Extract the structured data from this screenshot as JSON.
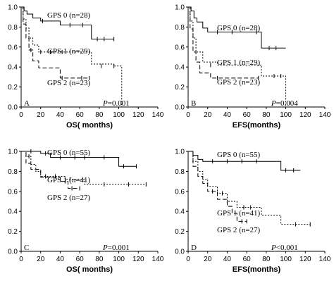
{
  "chart_data": [
    {
      "type": "line",
      "panel": "A",
      "xlabel": "OS( months)",
      "ylabel": "",
      "xlim": [
        0,
        140
      ],
      "ylim": [
        0,
        1.0
      ],
      "xticks": [
        0,
        20,
        40,
        60,
        80,
        100,
        120,
        140
      ],
      "yticks": [
        0.0,
        0.2,
        0.4,
        0.6,
        0.8,
        1.0
      ],
      "pvalue": "P=0.001",
      "series": [
        {
          "name": "GPS 0 (n=28)",
          "style": "solid",
          "x": [
            0,
            3,
            6,
            12,
            20,
            40,
            60,
            72,
            95
          ],
          "y": [
            1.0,
            0.96,
            0.93,
            0.89,
            0.86,
            0.82,
            0.82,
            0.68,
            0.68
          ],
          "censored": [
            [
              22,
              0.86
            ],
            [
              50,
              0.82
            ],
            [
              63,
              0.82
            ],
            [
              78,
              0.68
            ],
            [
              85,
              0.68
            ],
            [
              95,
              0.68
            ]
          ]
        },
        {
          "name": "GPS 1 (n=29)",
          "style": "dotted",
          "x": [
            0,
            2,
            5,
            8,
            12,
            18,
            40,
            72,
            95,
            103
          ],
          "y": [
            1.0,
            0.88,
            0.79,
            0.69,
            0.62,
            0.55,
            0.55,
            0.43,
            0.41,
            0.0
          ],
          "censored": [
            [
              20,
              0.55
            ],
            [
              30,
              0.55
            ],
            [
              42,
              0.55
            ],
            [
              82,
              0.41
            ],
            [
              95,
              0.41
            ]
          ]
        },
        {
          "name": "GPS 2 (n=23)",
          "style": "dashed",
          "x": [
            0,
            2,
            5,
            8,
            12,
            18,
            23,
            40,
            70
          ],
          "y": [
            1.0,
            0.83,
            0.69,
            0.57,
            0.46,
            0.39,
            0.39,
            0.29,
            0.29
          ],
          "censored": [
            [
              10,
              0.57
            ],
            [
              42,
              0.29
            ],
            [
              62,
              0.29
            ],
            [
              70,
              0.29
            ]
          ]
        }
      ]
    },
    {
      "type": "line",
      "panel": "B",
      "xlabel": "EFS(months)",
      "ylabel": "",
      "xlim": [
        0,
        140
      ],
      "ylim": [
        0,
        1.0
      ],
      "xticks": [
        0,
        20,
        40,
        60,
        80,
        100,
        120,
        140
      ],
      "yticks": [
        0.0,
        0.2,
        0.4,
        0.6,
        0.8,
        1.0
      ],
      "pvalue": "P=0.004",
      "series": [
        {
          "name": "GPS 0 (n=28)",
          "style": "solid",
          "x": [
            0,
            3,
            6,
            9,
            15,
            20,
            75,
            100
          ],
          "y": [
            1.0,
            0.96,
            0.89,
            0.85,
            0.79,
            0.75,
            0.59,
            0.59
          ],
          "censored": [
            [
              30,
              0.75
            ],
            [
              45,
              0.75
            ],
            [
              70,
              0.75
            ],
            [
              83,
              0.59
            ],
            [
              90,
              0.59
            ]
          ]
        },
        {
          "name": "GPS 1 (n=29)",
          "style": "dotted",
          "x": [
            0,
            2,
            5,
            8,
            15,
            30,
            75,
            80,
            100
          ],
          "y": [
            1.0,
            0.86,
            0.69,
            0.55,
            0.45,
            0.42,
            0.31,
            0.31,
            0.0
          ],
          "censored": [
            [
              23,
              0.42
            ],
            [
              88,
              0.31
            ],
            [
              95,
              0.31
            ]
          ]
        },
        {
          "name": "GPS 2 (n=23)",
          "style": "dashed",
          "x": [
            0,
            2,
            5,
            8,
            12,
            23,
            40,
            72
          ],
          "y": [
            1.0,
            0.78,
            0.55,
            0.45,
            0.34,
            0.29,
            0.29,
            0.29
          ],
          "censored": [
            [
              30,
              0.29
            ],
            [
              72,
              0.29
            ]
          ]
        }
      ]
    },
    {
      "type": "line",
      "panel": "C",
      "xlabel": "OS( months)",
      "ylabel": "",
      "xlim": [
        0,
        140
      ],
      "ylim": [
        0,
        1.0
      ],
      "xticks": [
        0,
        20,
        40,
        60,
        80,
        100,
        120,
        140
      ],
      "yticks": [
        0.0,
        0.2,
        0.4,
        0.6,
        0.8,
        1.0
      ],
      "pvalue": "P=0.001",
      "series": [
        {
          "name": "GPS 0 (n=55)",
          "style": "solid",
          "x": [
            0,
            20,
            30,
            75,
            100,
            118
          ],
          "y": [
            1.0,
            0.98,
            0.94,
            0.94,
            0.85,
            0.85
          ],
          "censored": [
            [
              10,
              1.0
            ],
            [
              25,
              0.98
            ],
            [
              40,
              0.94
            ],
            [
              55,
              0.94
            ],
            [
              65,
              0.94
            ],
            [
              85,
              0.94
            ],
            [
              105,
              0.85
            ],
            [
              118,
              0.85
            ]
          ]
        },
        {
          "name": "GPS 1 (n=41)",
          "style": "dotted",
          "x": [
            0,
            5,
            10,
            15,
            20,
            45,
            65,
            128
          ],
          "y": [
            1.0,
            0.95,
            0.87,
            0.8,
            0.75,
            0.72,
            0.67,
            0.67
          ],
          "censored": [
            [
              8,
              0.95
            ],
            [
              25,
              0.75
            ],
            [
              35,
              0.75
            ],
            [
              50,
              0.72
            ],
            [
              85,
              0.67
            ],
            [
              110,
              0.67
            ],
            [
              128,
              0.67
            ]
          ]
        },
        {
          "name": "GPS 2 (n=27)",
          "style": "dashed",
          "x": [
            0,
            5,
            10,
            20,
            40,
            48,
            60
          ],
          "y": [
            1.0,
            0.88,
            0.82,
            0.74,
            0.7,
            0.63,
            0.63
          ],
          "censored": [
            [
              45,
              0.7
            ],
            [
              52,
              0.63
            ],
            [
              60,
              0.63
            ]
          ]
        }
      ]
    },
    {
      "type": "line",
      "panel": "D",
      "xlabel": "EFS(months)",
      "ylabel": "",
      "xlim": [
        0,
        140
      ],
      "ylim": [
        0,
        1.0
      ],
      "xticks": [
        0,
        20,
        40,
        60,
        80,
        100,
        120,
        140
      ],
      "yticks": [
        0.0,
        0.2,
        0.4,
        0.6,
        0.8,
        1.0
      ],
      "pvalue": "P<0.001",
      "series": [
        {
          "name": "GPS 0 (n=55)",
          "style": "solid",
          "x": [
            0,
            5,
            10,
            15,
            95,
            115
          ],
          "y": [
            1.0,
            0.96,
            0.92,
            0.9,
            0.81,
            0.81
          ],
          "censored": [
            [
              25,
              0.9
            ],
            [
              40,
              0.9
            ],
            [
              55,
              0.9
            ],
            [
              70,
              0.9
            ],
            [
              100,
              0.81
            ],
            [
              108,
              0.81
            ]
          ]
        },
        {
          "name": "GPS 1 (n=41)",
          "style": "dotted",
          "x": [
            0,
            5,
            10,
            15,
            20,
            30,
            40,
            50,
            75,
            95,
            125
          ],
          "y": [
            1.0,
            0.9,
            0.8,
            0.72,
            0.65,
            0.58,
            0.5,
            0.44,
            0.36,
            0.27,
            0.27
          ],
          "censored": [
            [
              35,
              0.58
            ],
            [
              57,
              0.44
            ],
            [
              64,
              0.44
            ],
            [
              110,
              0.27
            ],
            [
              125,
              0.27
            ]
          ]
        },
        {
          "name": "GPS 2 (n=27)",
          "style": "dashed",
          "x": [
            0,
            5,
            10,
            15,
            20,
            30,
            40,
            45,
            50,
            60
          ],
          "y": [
            1.0,
            0.85,
            0.75,
            0.68,
            0.6,
            0.52,
            0.45,
            0.38,
            0.3,
            0.3
          ],
          "censored": [
            [
              25,
              0.6
            ],
            [
              55,
              0.3
            ],
            [
              60,
              0.3
            ]
          ]
        }
      ]
    }
  ]
}
